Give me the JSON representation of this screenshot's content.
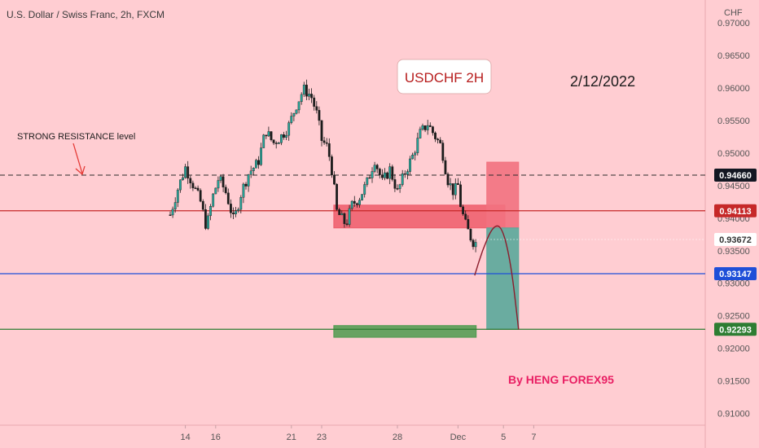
{
  "chart_data": {
    "type": "candlestick",
    "title": "U.S. Dollar / Swiss Franc, 2h, FXCM",
    "currency_label": "CHF",
    "x_ticks": [
      "14",
      "16",
      "21",
      "23",
      "28",
      "Dec",
      "5",
      "7"
    ],
    "y_ticks": [
      "0.97000",
      "0.96500",
      "0.96000",
      "0.95500",
      "0.95000",
      "0.94500",
      "0.94000",
      "0.93500",
      "0.93000",
      "0.92500",
      "0.92000",
      "0.91500",
      "0.91000"
    ],
    "ylim": [
      0.9082,
      0.9735
    ],
    "price_series": [
      {
        "day": 13.0,
        "price": 0.9405
      },
      {
        "day": 13.5,
        "price": 0.9445
      },
      {
        "day": 14.0,
        "price": 0.9478
      },
      {
        "day": 14.5,
        "price": 0.9452
      },
      {
        "day": 15.0,
        "price": 0.9425
      },
      {
        "day": 15.4,
        "price": 0.9385
      },
      {
        "day": 15.8,
        "price": 0.9432
      },
      {
        "day": 16.2,
        "price": 0.9462
      },
      {
        "day": 16.7,
        "price": 0.9438
      },
      {
        "day": 17.2,
        "price": 0.9395
      },
      {
        "day": 17.7,
        "price": 0.944
      },
      {
        "day": 18.2,
        "price": 0.947
      },
      {
        "day": 18.8,
        "price": 0.9485
      },
      {
        "day": 19.3,
        "price": 0.9535
      },
      {
        "day": 19.8,
        "price": 0.9515
      },
      {
        "day": 20.3,
        "price": 0.9525
      },
      {
        "day": 20.8,
        "price": 0.954
      },
      {
        "day": 21.3,
        "price": 0.9572
      },
      {
        "day": 21.8,
        "price": 0.9598
      },
      {
        "day": 22.3,
        "price": 0.9588
      },
      {
        "day": 22.7,
        "price": 0.9558
      },
      {
        "day": 23.0,
        "price": 0.952
      },
      {
        "day": 23.4,
        "price": 0.9508
      },
      {
        "day": 23.7,
        "price": 0.947
      },
      {
        "day": 24.0,
        "price": 0.941
      },
      {
        "day": 24.3,
        "price": 0.94
      },
      {
        "day": 24.6,
        "price": 0.939
      },
      {
        "day": 25.0,
        "price": 0.942
      },
      {
        "day": 25.5,
        "price": 0.9432
      },
      {
        "day": 26.0,
        "price": 0.9455
      },
      {
        "day": 26.5,
        "price": 0.949
      },
      {
        "day": 27.0,
        "price": 0.9455
      },
      {
        "day": 27.5,
        "price": 0.9475
      },
      {
        "day": 28.0,
        "price": 0.944
      },
      {
        "day": 28.5,
        "price": 0.947
      },
      {
        "day": 29.0,
        "price": 0.9495
      },
      {
        "day": 29.5,
        "price": 0.953
      },
      {
        "day": 30.0,
        "price": 0.9545
      },
      {
        "day": 30.5,
        "price": 0.9525
      },
      {
        "day": 30.9,
        "price": 0.951
      },
      {
        "day": 31.3,
        "price": 0.946
      },
      {
        "day": 31.7,
        "price": 0.944
      },
      {
        "day": 32.0,
        "price": 0.945
      },
      {
        "day": 32.2,
        "price": 0.9415
      },
      {
        "day": 32.5,
        "price": 0.939
      },
      {
        "day": 32.8,
        "price": 0.9372
      },
      {
        "day": 33.1,
        "price": 0.936
      },
      {
        "day": 33.3,
        "price": 0.9367
      }
    ],
    "axis_labels": [
      {
        "value": 0.9466,
        "label": "0.94660",
        "color": "#131722",
        "line_style": "dashed"
      },
      {
        "value": 0.94113,
        "label": "0.94113",
        "color": "#c62828",
        "line_style": "solid"
      },
      {
        "value": 0.93672,
        "label": "0.93672",
        "color": "#ffffff",
        "line_style": "dotted"
      },
      {
        "value": 0.93147,
        "label": "0.93147",
        "color": "#1e4fd8",
        "line_style": "solid"
      },
      {
        "value": 0.92293,
        "label": "0.92293",
        "color": "#2e7d32",
        "line_style": "solid"
      }
    ],
    "zones": [
      {
        "name": "resistance-zone",
        "day_start": 23.8,
        "day_end": 35.1,
        "price_low": 0.9385,
        "price_high": 0.942,
        "color": "#ef5b6a"
      },
      {
        "name": "target-zone",
        "day_start": 23.8,
        "day_end": 33.2,
        "price_low": 0.9217,
        "price_high": 0.9235,
        "color": "#4e9a4e"
      },
      {
        "name": "stop-zone",
        "day_start": 33.9,
        "day_end": 36.0,
        "price_low": 0.9385,
        "price_high": 0.9486,
        "color": "#f2727f"
      },
      {
        "name": "profit-zone",
        "day_start": 33.9,
        "day_end": 36.0,
        "price_low": 0.9229,
        "price_high": 0.9385,
        "color": "#5aa89a"
      }
    ],
    "projection": [
      {
        "day": 33.1,
        "price": 0.9312
      },
      {
        "day": 33.6,
        "price": 0.935
      },
      {
        "day": 34.3,
        "price": 0.9388
      },
      {
        "day": 34.9,
        "price": 0.9388
      },
      {
        "day": 35.5,
        "price": 0.933
      },
      {
        "day": 36.0,
        "price": 0.9229
      }
    ],
    "annotations": {
      "box_text": "USDCHF 2H",
      "date_text": "2/12/2022",
      "resistance_text": "STRONG RESISTANCE level",
      "watermark_text": "By HENG FOREX95"
    },
    "colors": {
      "background": "#ffcdd2",
      "up_candle": "#26a69a",
      "down_candle": "#1c1c1c",
      "title_text": "#b71c1c",
      "watermark": "#e91e63"
    },
    "grid": false,
    "legend": "none"
  }
}
